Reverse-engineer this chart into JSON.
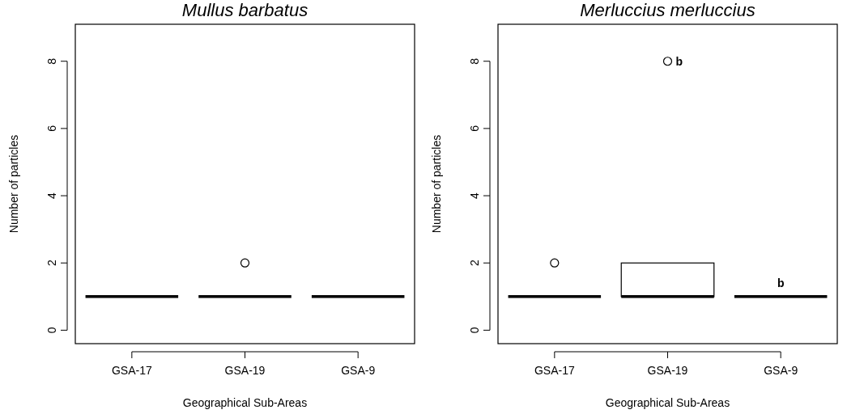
{
  "chart_data": [
    {
      "type": "box",
      "title": "Mullus barbatus",
      "xlabel": "Geographical Sub-Areas",
      "ylabel": "Number of particles",
      "categories": [
        "GSA-17",
        "GSA-19",
        "GSA-9"
      ],
      "boxes": [
        {
          "low": 1,
          "q1": 1,
          "median": 1,
          "q3": 1,
          "high": 1
        },
        {
          "low": 1,
          "q1": 1,
          "median": 1,
          "q3": 1,
          "high": 1,
          "outliers": [
            2
          ]
        },
        {
          "low": 1,
          "q1": 1,
          "median": 1,
          "q3": 1,
          "high": 1
        }
      ],
      "ylim": [
        -0.4,
        9.1
      ],
      "yticks": [
        0,
        2,
        4,
        6,
        8
      ],
      "grid": false
    },
    {
      "type": "box",
      "title": "Merluccius merluccius",
      "xlabel": "Geographical Sub-Areas",
      "ylabel": "Number of particles",
      "categories": [
        "GSA-17",
        "GSA-19",
        "GSA-9"
      ],
      "boxes": [
        {
          "low": 1,
          "q1": 1,
          "median": 1,
          "q3": 1,
          "high": 1,
          "outliers": [
            2
          ]
        },
        {
          "low": 1,
          "q1": 1,
          "median": 1,
          "q3": 2,
          "high": 2,
          "outliers": [
            8
          ]
        },
        {
          "low": 1,
          "q1": 1,
          "median": 1,
          "q3": 1,
          "high": 1
        }
      ],
      "annotations": [
        "b",
        "b"
      ],
      "ylim": [
        -0.4,
        9.1
      ],
      "yticks": [
        0,
        2,
        4,
        6,
        8
      ],
      "grid": false
    }
  ]
}
